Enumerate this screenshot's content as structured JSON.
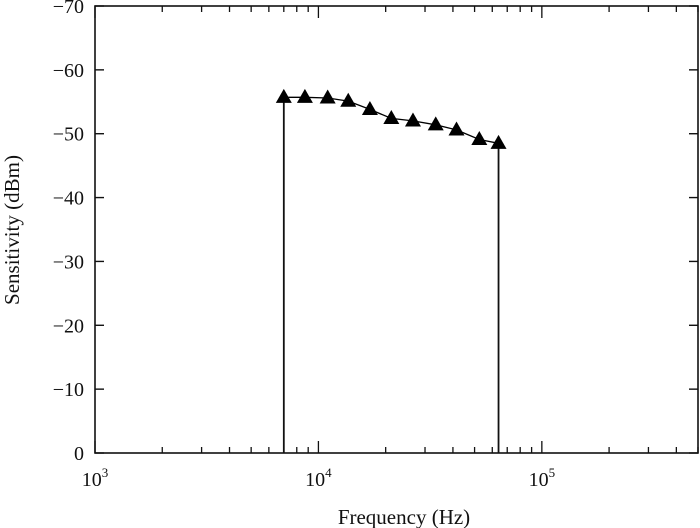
{
  "chart_data": {
    "type": "line",
    "title": "",
    "xlabel": "Frequency (Hz)",
    "ylabel": "Sensitivity (dBm)",
    "x_scale": "log",
    "xlim": [
      1000,
      500000
    ],
    "ylim": [
      0,
      -70
    ],
    "x_ticks": [
      {
        "base": "10",
        "exp": "3",
        "value": 1000
      },
      {
        "base": "10",
        "exp": "4",
        "value": 10000
      },
      {
        "base": "10",
        "exp": "5",
        "value": 100000
      }
    ],
    "y_ticks": [
      "0",
      "−10",
      "−20",
      "−30",
      "−40",
      "−50",
      "−60",
      "−70"
    ],
    "y_tick_values": [
      0,
      -10,
      -20,
      -30,
      -40,
      -50,
      -60,
      -70
    ],
    "grid": false,
    "legend": "none",
    "series": [
      {
        "marker": "triangle",
        "color": "#000000",
        "x": [
          7000,
          8700,
          11000,
          13600,
          17000,
          21200,
          26500,
          33500,
          41500,
          52500,
          64000
        ],
        "y": [
          -55.7,
          -55.7,
          -55.6,
          -55.1,
          -53.8,
          -52.4,
          -52.0,
          -51.4,
          -50.6,
          -49.1,
          -48.5
        ]
      }
    ],
    "vertical_lines": [
      {
        "x": 7000,
        "y_from": 0,
        "y_to": -55.7
      },
      {
        "x": 64000,
        "y_from": 0,
        "y_to": -48.5
      }
    ]
  }
}
